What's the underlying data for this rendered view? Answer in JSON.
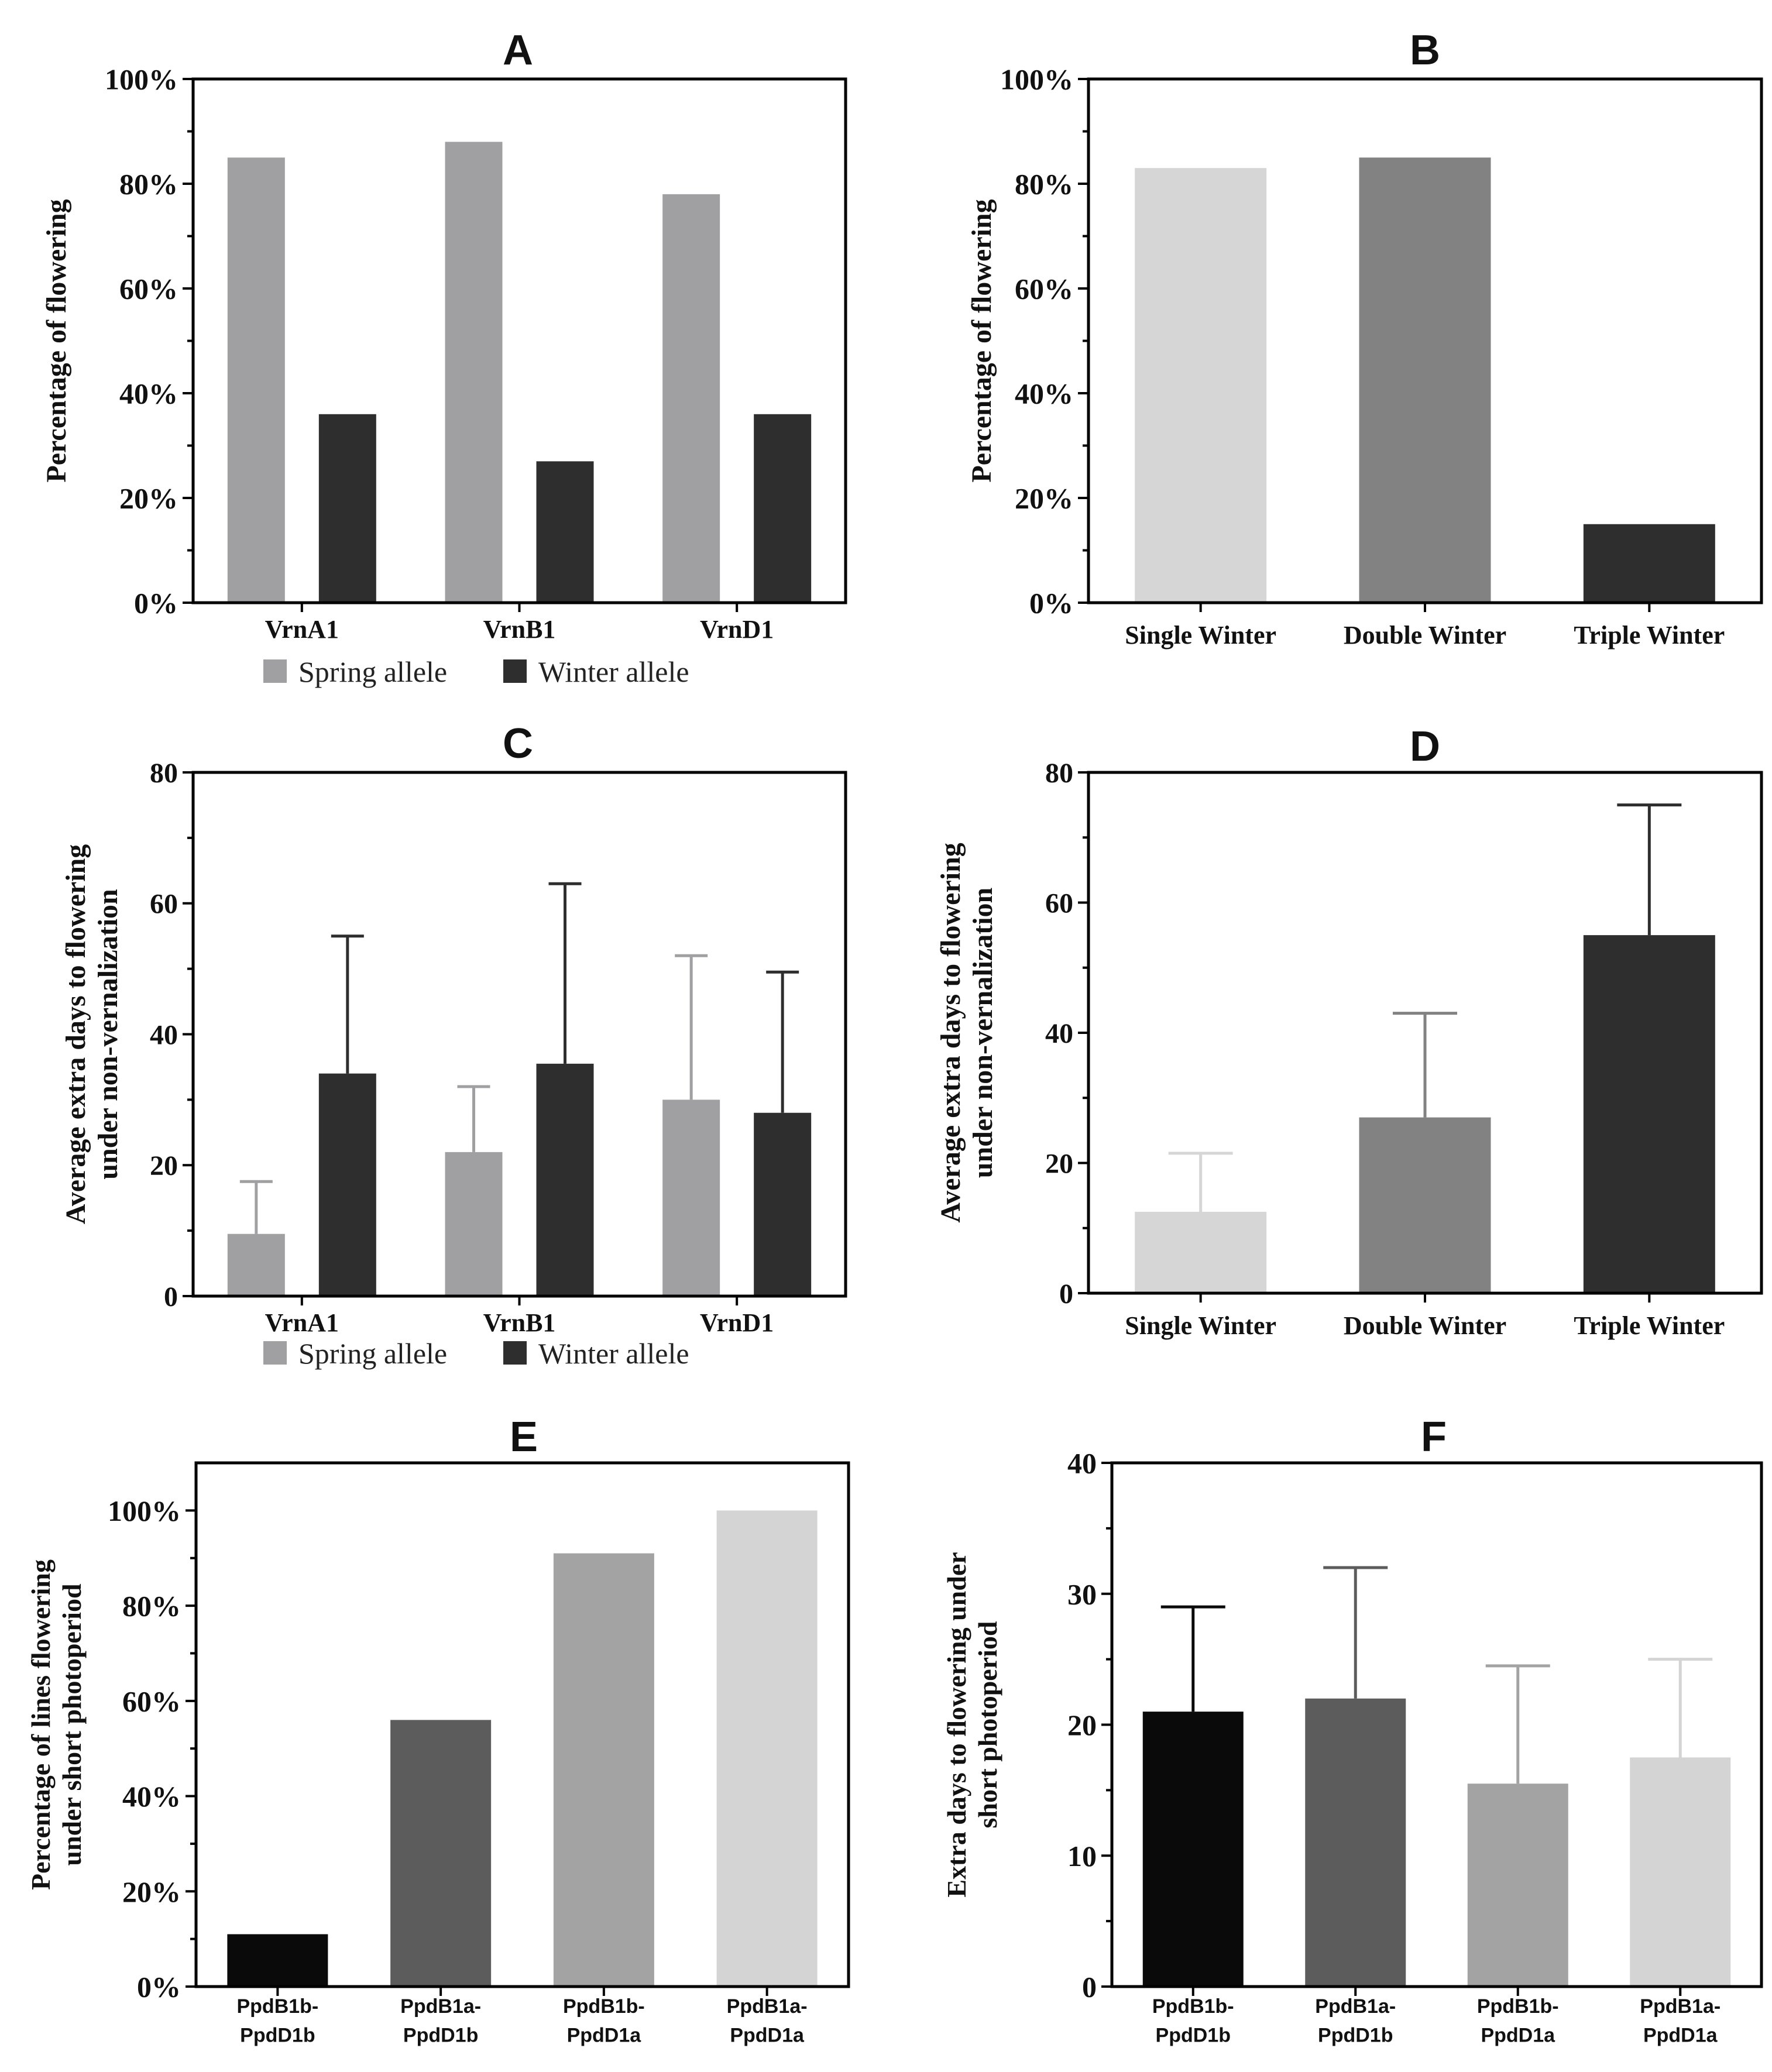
{
  "figure": {
    "legend_spring": "Spring allele",
    "legend_winter": "Winter allele",
    "colors": {
      "spring": "#a0a0a3",
      "winter": "#2e2e2e",
      "light": "#d6d6d6",
      "mid": "#828282",
      "dark": "#2e2e2e",
      "black": "#0a0a0a",
      "darkgray": "#5c5c5c",
      "gray": "#a3a3a3",
      "lightgray": "#d4d4d4"
    }
  },
  "chart_data": [
    {
      "id": "A",
      "type": "bar",
      "title": "A",
      "ylabel": "Percentage of flowering",
      "ylim": [
        0,
        100
      ],
      "yticks": [
        0,
        20,
        40,
        60,
        80,
        100
      ],
      "ytick_labels": [
        "0%",
        "20%",
        "40%",
        "60%",
        "80%",
        "100%"
      ],
      "categories": [
        "VrnA1",
        "VrnB1",
        "VrnD1"
      ],
      "series": [
        {
          "name": "Spring allele",
          "values": [
            85,
            88,
            78
          ]
        },
        {
          "name": "Winter allele",
          "values": [
            36,
            27,
            36
          ]
        }
      ],
      "legend": "bottom"
    },
    {
      "id": "B",
      "type": "bar",
      "title": "B",
      "ylabel": "Percentage of flowering",
      "ylim": [
        0,
        100
      ],
      "yticks": [
        0,
        20,
        40,
        60,
        80,
        100
      ],
      "ytick_labels": [
        "0%",
        "20%",
        "40%",
        "60%",
        "80%",
        "100%"
      ],
      "categories": [
        "Single Winter",
        "Double Winter",
        "Triple Winter"
      ],
      "values": [
        83,
        85,
        15
      ]
    },
    {
      "id": "C",
      "type": "bar",
      "title": "C",
      "ylabel": [
        "Average extra days to flowering",
        "under non-vernalization"
      ],
      "ylim": [
        0,
        80
      ],
      "yticks": [
        0,
        20,
        40,
        60,
        80
      ],
      "ytick_labels": [
        "0",
        "20",
        "40",
        "60",
        "80"
      ],
      "categories": [
        "VrnA1",
        "VrnB1",
        "VrnD1"
      ],
      "series": [
        {
          "name": "Spring allele",
          "values": [
            9.5,
            22,
            30
          ],
          "errors": [
            8,
            10,
            22
          ]
        },
        {
          "name": "Winter allele",
          "values": [
            34,
            35.5,
            28
          ],
          "errors": [
            21,
            27.5,
            21.5
          ]
        }
      ],
      "legend": "bottom"
    },
    {
      "id": "D",
      "type": "bar",
      "title": "D",
      "ylabel": [
        "Average extra days to flowering",
        "under non-vernalization"
      ],
      "ylim": [
        0,
        80
      ],
      "yticks": [
        0,
        20,
        40,
        60,
        80
      ],
      "ytick_labels": [
        "0",
        "20",
        "40",
        "60",
        "80"
      ],
      "categories": [
        "Single Winter",
        "Double Winter",
        "Triple Winter"
      ],
      "values": [
        12.5,
        27,
        55
      ],
      "errors": [
        9,
        16,
        20
      ]
    },
    {
      "id": "E",
      "type": "bar",
      "title": "E",
      "ylabel": [
        "Percentage of lines flowering",
        "under short photoperiod"
      ],
      "ylim": [
        0,
        110
      ],
      "yticks": [
        0,
        20,
        40,
        60,
        80,
        100
      ],
      "ytick_labels": [
        "0%",
        "20%",
        "40%",
        "60%",
        "80%",
        "100%"
      ],
      "categories": [
        [
          "PpdB1b-",
          "PpdD1b"
        ],
        [
          "PpdB1a-",
          "PpdD1b"
        ],
        [
          "PpdB1b-",
          "PpdD1a"
        ],
        [
          "PpdB1a-",
          "PpdD1a"
        ]
      ],
      "values": [
        11,
        56,
        91,
        100
      ]
    },
    {
      "id": "F",
      "type": "bar",
      "title": "F",
      "ylabel": [
        "Extra days to flowering under",
        "short photoperiod"
      ],
      "ylim": [
        0,
        40
      ],
      "yticks": [
        0,
        10,
        20,
        30,
        40
      ],
      "ytick_labels": [
        "0",
        "10",
        "20",
        "30",
        "40"
      ],
      "categories": [
        [
          "PpdB1b-",
          "PpdD1b"
        ],
        [
          "PpdB1a-",
          "PpdD1b"
        ],
        [
          "PpdB1b-",
          "PpdD1a"
        ],
        [
          "PpdB1a-",
          "PpdD1a"
        ]
      ],
      "values": [
        21,
        22,
        15.5,
        17.5
      ],
      "errors": [
        8,
        10,
        9,
        7.5
      ]
    }
  ]
}
